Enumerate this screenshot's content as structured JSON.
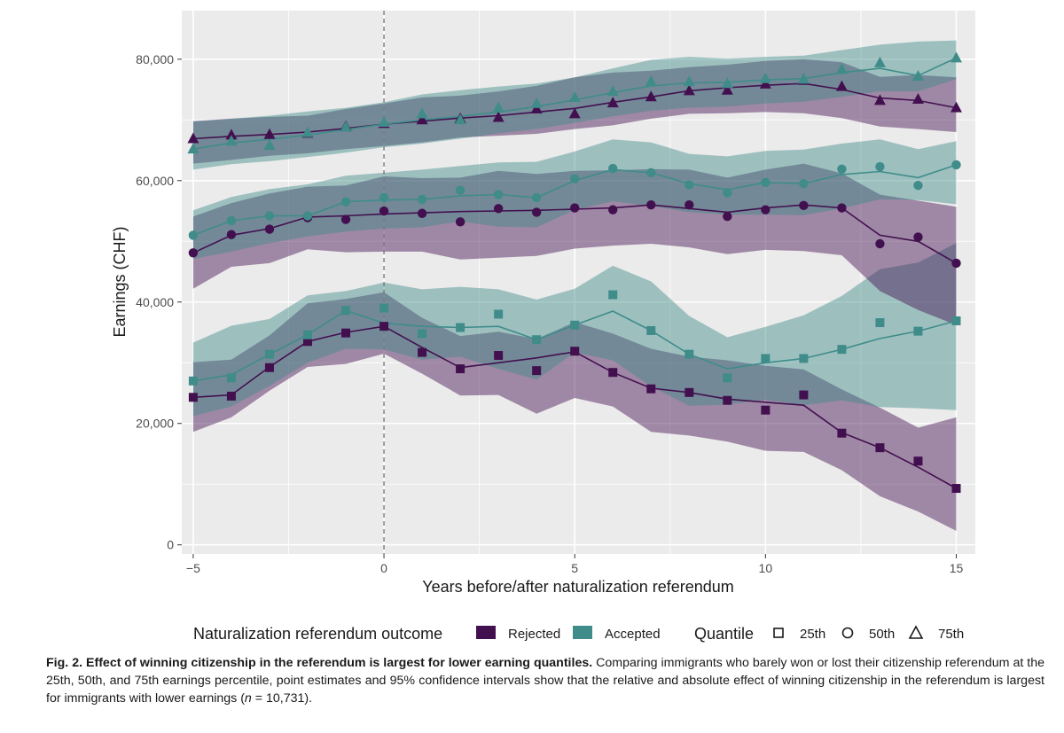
{
  "chart_data": {
    "type": "line",
    "title": "",
    "xlabel": "Years before/after naturalization referendum",
    "ylabel": "Earnings (CHF)",
    "xlim": [
      -5.3,
      15.5
    ],
    "ylim": [
      -1500,
      88000
    ],
    "x_ticks": [
      -5,
      0,
      5,
      10,
      15
    ],
    "x_tick_labels": [
      "−5",
      "0",
      "5",
      "10",
      "15"
    ],
    "y_ticks": [
      0,
      20000,
      40000,
      60000,
      80000
    ],
    "y_tick_labels": [
      "0",
      "20,000",
      "40,000",
      "60,000",
      "80,000"
    ],
    "reference_line_x": 0,
    "colors": {
      "Rejected": "#43104f",
      "Accepted": "#3f8c8a",
      "panel": "#ebebeb",
      "grid": "#ffffff",
      "reference": "#7a7a7a"
    },
    "x": [
      -5,
      -4,
      -3,
      -2,
      -1,
      0,
      1,
      2,
      3,
      4,
      5,
      6,
      7,
      8,
      9,
      10,
      11,
      12,
      13,
      14,
      15
    ],
    "series": [
      {
        "name": "Rejected",
        "quantile": "25th",
        "marker": "square",
        "points": [
          24300,
          24500,
          29200,
          33500,
          34900,
          36000,
          31700,
          29000,
          31200,
          28700,
          31900,
          28400,
          25700,
          25100,
          23800,
          22200,
          24700,
          18400,
          16000,
          13800,
          9300
        ],
        "line": [
          24300,
          24700,
          29300,
          33500,
          35000,
          36000,
          32500,
          29200,
          30000,
          30800,
          31800,
          28400,
          25800,
          25100,
          24000,
          23500,
          23000,
          18500,
          16000,
          12800,
          9300
        ],
        "lower": [
          18600,
          21000,
          25400,
          29300,
          29800,
          31500,
          28200,
          24600,
          24700,
          21600,
          24200,
          22800,
          18600,
          18000,
          17000,
          15500,
          15300,
          12300,
          8000,
          5500,
          2300
        ],
        "upper": [
          30100,
          30500,
          34500,
          39800,
          40500,
          41600,
          37400,
          34400,
          35100,
          33900,
          36700,
          34800,
          32300,
          31000,
          30400,
          29500,
          28900,
          25600,
          22600,
          19300,
          21000
        ]
      },
      {
        "name": "Accepted",
        "quantile": "25th",
        "marker": "square",
        "points": [
          27000,
          27500,
          31400,
          34600,
          38600,
          39000,
          34800,
          35800,
          38000,
          33800,
          36200,
          41200,
          35300,
          31400,
          27500,
          30700,
          30700,
          32200,
          36600,
          35200,
          36900
        ],
        "line": [
          27000,
          28000,
          31400,
          34600,
          38600,
          36500,
          36000,
          35800,
          36000,
          33800,
          36200,
          38500,
          35300,
          31400,
          29000,
          30000,
          30700,
          32200,
          34000,
          35200,
          36900
        ],
        "lower": [
          21200,
          22800,
          26200,
          30000,
          32300,
          32200,
          30500,
          31000,
          29000,
          27200,
          31700,
          30400,
          26100,
          22900,
          23100,
          23900,
          23000,
          23800,
          22700,
          22500,
          22200
        ],
        "upper": [
          33300,
          36100,
          37200,
          41100,
          41800,
          43200,
          42100,
          42500,
          42100,
          40400,
          42200,
          46000,
          43400,
          37700,
          34200,
          35900,
          37800,
          41000,
          45400,
          46500,
          49700
        ]
      },
      {
        "name": "Rejected",
        "quantile": "50th",
        "marker": "circle",
        "points": [
          48100,
          51100,
          52000,
          53900,
          53600,
          55000,
          54600,
          53200,
          55400,
          54800,
          55500,
          55200,
          56000,
          56000,
          54100,
          55200,
          55900,
          55500,
          49600,
          50700,
          46400
        ],
        "line": [
          48100,
          51000,
          52100,
          54000,
          54200,
          54500,
          54700,
          54900,
          55000,
          55100,
          55300,
          55500,
          56000,
          55400,
          54800,
          55500,
          56000,
          55500,
          51000,
          50000,
          46400
        ],
        "lower": [
          42200,
          45800,
          46400,
          48700,
          48200,
          48300,
          48300,
          47000,
          47300,
          47600,
          48800,
          49300,
          49600,
          49000,
          47900,
          48600,
          48400,
          47700,
          41800,
          38700,
          36200
        ],
        "upper": [
          54100,
          56300,
          57900,
          59000,
          59200,
          60700,
          60400,
          60500,
          61600,
          61100,
          61600,
          61700,
          61900,
          61800,
          60500,
          61800,
          62800,
          61200,
          57700,
          56700,
          55700
        ]
      },
      {
        "name": "Accepted",
        "quantile": "50th",
        "marker": "circle",
        "points": [
          51000,
          53400,
          54200,
          54200,
          56500,
          57200,
          56900,
          58400,
          57700,
          57200,
          60300,
          62000,
          61300,
          59300,
          58000,
          59700,
          59500,
          61900,
          62300,
          59200,
          62600
        ],
        "line": [
          51000,
          53400,
          54200,
          54200,
          56500,
          56800,
          56900,
          57500,
          57700,
          57200,
          60000,
          61800,
          61300,
          59500,
          58500,
          59700,
          59500,
          61000,
          61500,
          60500,
          62600
        ],
        "lower": [
          47100,
          48300,
          49700,
          50800,
          51600,
          52100,
          52300,
          53300,
          52400,
          52300,
          55200,
          56600,
          55800,
          54800,
          54400,
          54400,
          54300,
          55400,
          56900,
          56800,
          56100
        ],
        "upper": [
          55100,
          57300,
          58600,
          59400,
          60800,
          61300,
          61800,
          62400,
          63000,
          63100,
          64800,
          66800,
          66300,
          64400,
          64000,
          64900,
          65100,
          66100,
          66800,
          65200,
          66500
        ]
      },
      {
        "name": "Rejected",
        "quantile": "75th",
        "marker": "triangle",
        "points": [
          66900,
          67500,
          67600,
          67800,
          68900,
          69400,
          70000,
          70200,
          70400,
          71800,
          71000,
          72800,
          73800,
          74800,
          74900,
          75900,
          76500,
          75500,
          73200,
          73400,
          72000
        ],
        "line": [
          66900,
          67300,
          67600,
          68000,
          68600,
          69300,
          69800,
          70300,
          70700,
          71300,
          71900,
          72900,
          73800,
          74800,
          75300,
          75700,
          76000,
          75000,
          73600,
          73200,
          72000
        ],
        "lower": [
          62800,
          63400,
          64100,
          64500,
          65200,
          65700,
          66300,
          67100,
          67400,
          67700,
          68500,
          69100,
          70200,
          71000,
          71100,
          71300,
          71100,
          70300,
          68900,
          68500,
          68000
        ],
        "upper": [
          69800,
          70200,
          70500,
          70700,
          71800,
          72700,
          73700,
          74000,
          74700,
          75600,
          77000,
          77800,
          78100,
          78700,
          79100,
          79700,
          80000,
          79500,
          77100,
          77400,
          77000
        ]
      },
      {
        "name": "Accepted",
        "quantile": "75th",
        "marker": "triangle",
        "points": [
          65200,
          66500,
          65800,
          67900,
          68800,
          69600,
          71000,
          70000,
          72000,
          72700,
          73700,
          74700,
          76300,
          76300,
          76000,
          76800,
          76700,
          78300,
          79400,
          77200,
          80200
        ],
        "line": [
          65200,
          66200,
          66800,
          67500,
          68400,
          69300,
          70000,
          70600,
          71300,
          72200,
          73300,
          74500,
          75600,
          76100,
          76200,
          76600,
          76800,
          77800,
          78500,
          77300,
          80200
        ],
        "lower": [
          61800,
          62700,
          63200,
          63900,
          64600,
          65500,
          66100,
          66900,
          67800,
          68500,
          69500,
          70600,
          71500,
          72000,
          72200,
          72700,
          73000,
          73800,
          74700,
          74700,
          76700
        ],
        "upper": [
          69700,
          70200,
          70700,
          71400,
          72000,
          72900,
          74200,
          74900,
          75500,
          76000,
          77000,
          78500,
          79900,
          80400,
          80100,
          80400,
          80600,
          81500,
          82400,
          82900,
          83100
        ]
      }
    ],
    "legend": {
      "placement": "bottom",
      "outcome_title": "Naturalization referendum outcome",
      "outcome_items": [
        "Rejected",
        "Accepted"
      ],
      "quantile_title": "Quantile",
      "quantile_items": [
        "25th",
        "50th",
        "75th"
      ]
    }
  },
  "caption": {
    "label": "Fig. 2.",
    "title": "Effect of winning citizenship in the referendum is largest for lower earning quantiles.",
    "body_before_n": " Comparing immigrants who barely won or lost their citizenship referendum at the 25th, 50th, and 75th earnings percentile, point estimates and 95% confidence intervals show that the relative and absolute effect of winning citizenship in the referendum is largest for immigrants with lower earnings (",
    "n_symbol": "n",
    "body_after_n": " = 10,731)."
  }
}
